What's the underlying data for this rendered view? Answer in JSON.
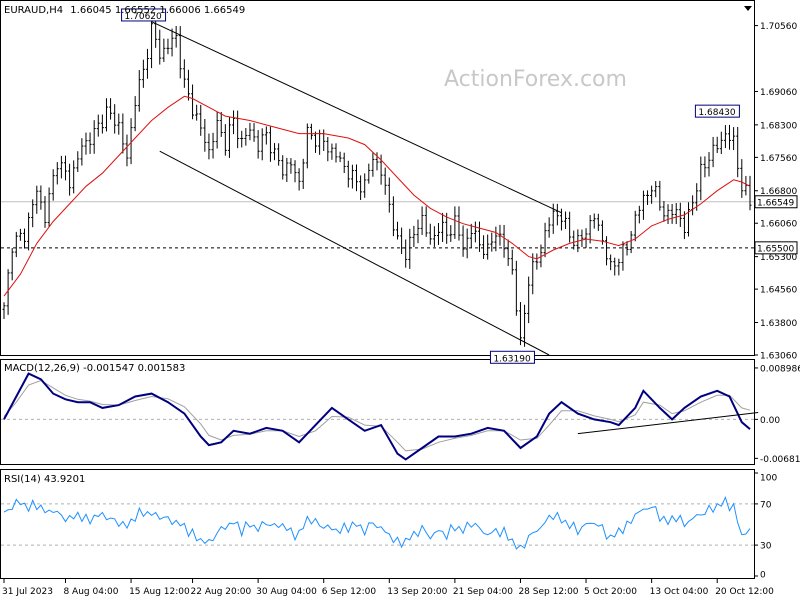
{
  "header": {
    "symbol_tf": "EURAUD,H4",
    "ohlc": "1.66045 1.66552 1.66006 1.66549"
  },
  "watermark": "ActionForex.com",
  "colors": {
    "price": "#000000",
    "sma": "#e01010",
    "macd": "#000080",
    "signal": "#a0a0a0",
    "rsi": "#1e90ff",
    "channel": "#000000"
  },
  "price_panel": {
    "price_axis_ticks": [
      "1.70560",
      "1.69060",
      "1.68300",
      "1.67560",
      "1.66800",
      "1.66060",
      "1.65300",
      "1.64560",
      "1.63800",
      "1.63060"
    ],
    "ylim": [
      1.6306,
      1.7112
    ],
    "current_price_tag": "1.66549",
    "current_price": 1.66549,
    "support_tag": "1.65500",
    "support_level": 1.655,
    "annotations": [
      {
        "text": "1.70620",
        "bar": 36,
        "value": 1.7062,
        "pos": "above"
      },
      {
        "text": "1.68430",
        "bar": 176,
        "value": 1.6843,
        "pos": "above"
      },
      {
        "text": "1.63190",
        "bar": 126,
        "value": 1.6319,
        "pos": "below"
      }
    ],
    "channel_upper": [
      [
        36,
        1.7065
      ],
      [
        136,
        1.663
      ]
    ],
    "channel_lower": [
      [
        38,
        1.677
      ],
      [
        133,
        1.6306
      ]
    ],
    "close_path": [
      [
        0,
        1.641
      ],
      [
        2,
        1.656
      ],
      [
        5,
        1.658
      ],
      [
        8,
        1.668
      ],
      [
        10,
        1.662
      ],
      [
        13,
        1.675
      ],
      [
        16,
        1.67
      ],
      [
        19,
        1.678
      ],
      [
        22,
        1.681
      ],
      [
        25,
        1.686
      ],
      [
        28,
        1.683
      ],
      [
        30,
        1.675
      ],
      [
        32,
        1.689
      ],
      [
        34,
        1.695
      ],
      [
        36,
        1.705
      ],
      [
        38,
        1.699
      ],
      [
        40,
        1.701
      ],
      [
        42,
        1.703
      ],
      [
        44,
        1.692
      ],
      [
        46,
        1.687
      ],
      [
        48,
        1.682
      ],
      [
        50,
        1.677
      ],
      [
        52,
        1.683
      ],
      [
        54,
        1.679
      ],
      [
        56,
        1.684
      ],
      [
        58,
        1.679
      ],
      [
        60,
        1.682
      ],
      [
        62,
        1.678
      ],
      [
        64,
        1.681
      ],
      [
        66,
        1.676
      ],
      [
        68,
        1.673
      ],
      [
        70,
        1.674
      ],
      [
        72,
        1.67
      ],
      [
        74,
        1.681
      ],
      [
        76,
        1.68
      ],
      [
        78,
        1.679
      ],
      [
        80,
        1.677
      ],
      [
        82,
        1.675
      ],
      [
        84,
        1.672
      ],
      [
        86,
        1.67
      ],
      [
        88,
        1.669
      ],
      [
        90,
        1.676
      ],
      [
        92,
        1.672
      ],
      [
        94,
        1.665
      ],
      [
        96,
        1.656
      ],
      [
        98,
        1.654
      ],
      [
        100,
        1.658
      ],
      [
        102,
        1.662
      ],
      [
        104,
        1.656
      ],
      [
        106,
        1.66
      ],
      [
        108,
        1.658
      ],
      [
        110,
        1.661
      ],
      [
        112,
        1.655
      ],
      [
        114,
        1.659
      ],
      [
        116,
        1.656
      ],
      [
        118,
        1.654
      ],
      [
        120,
        1.659
      ],
      [
        122,
        1.655
      ],
      [
        124,
        1.65
      ],
      [
        126,
        1.633
      ],
      [
        128,
        1.648
      ],
      [
        130,
        1.652
      ],
      [
        132,
        1.658
      ],
      [
        134,
        1.663
      ],
      [
        136,
        1.662
      ],
      [
        138,
        1.658
      ],
      [
        140,
        1.656
      ],
      [
        142,
        1.659
      ],
      [
        144,
        1.662
      ],
      [
        146,
        1.657
      ],
      [
        148,
        1.65
      ],
      [
        150,
        1.653
      ],
      [
        152,
        1.655
      ],
      [
        154,
        1.662
      ],
      [
        156,
        1.666
      ],
      [
        158,
        1.669
      ],
      [
        160,
        1.665
      ],
      [
        162,
        1.662
      ],
      [
        164,
        1.664
      ],
      [
        166,
        1.659
      ],
      [
        168,
        1.666
      ],
      [
        170,
        1.672
      ],
      [
        172,
        1.676
      ],
      [
        174,
        1.678
      ],
      [
        176,
        1.681
      ],
      [
        178,
        1.679
      ],
      [
        180,
        1.669
      ],
      [
        182,
        1.6655
      ]
    ],
    "sma_path": [
      [
        0,
        1.644
      ],
      [
        4,
        1.649
      ],
      [
        8,
        1.656
      ],
      [
        12,
        1.661
      ],
      [
        16,
        1.665
      ],
      [
        20,
        1.669
      ],
      [
        24,
        1.672
      ],
      [
        28,
        1.676
      ],
      [
        32,
        1.68
      ],
      [
        36,
        1.684
      ],
      [
        40,
        1.687
      ],
      [
        44,
        1.6895
      ],
      [
        46,
        1.689
      ],
      [
        50,
        1.687
      ],
      [
        54,
        1.685
      ],
      [
        60,
        1.684
      ],
      [
        66,
        1.6825
      ],
      [
        72,
        1.681
      ],
      [
        78,
        1.681
      ],
      [
        84,
        1.68
      ],
      [
        88,
        1.6785
      ],
      [
        92,
        1.675
      ],
      [
        96,
        1.671
      ],
      [
        100,
        1.667
      ],
      [
        104,
        1.664
      ],
      [
        108,
        1.662
      ],
      [
        112,
        1.6605
      ],
      [
        116,
        1.6595
      ],
      [
        120,
        1.6585
      ],
      [
        124,
        1.656
      ],
      [
        128,
        1.653
      ],
      [
        130,
        1.6525
      ],
      [
        134,
        1.6545
      ],
      [
        138,
        1.656
      ],
      [
        142,
        1.657
      ],
      [
        146,
        1.6565
      ],
      [
        150,
        1.6555
      ],
      [
        154,
        1.657
      ],
      [
        158,
        1.66
      ],
      [
        162,
        1.6615
      ],
      [
        166,
        1.6625
      ],
      [
        170,
        1.665
      ],
      [
        174,
        1.668
      ],
      [
        178,
        1.6705
      ],
      [
        180,
        1.67
      ],
      [
        182,
        1.669
      ]
    ],
    "time_labels": [
      "31 Jul 2023",
      "8 Aug 04:00",
      "15 Aug 12:00",
      "22 Aug 20:00",
      "30 Aug 04:00",
      "6 Sep 12:00",
      "13 Sep 20:00",
      "21 Sep 04:00",
      "28 Sep 12:00",
      "5 Oct 20:00",
      "13 Oct 04:00",
      "20 Oct 12:00"
    ],
    "time_label_bars": [
      0,
      15,
      31,
      46,
      62,
      78,
      94,
      110,
      126,
      142,
      158,
      174
    ],
    "bars_total": 183
  },
  "macd_panel": {
    "header": "MACD(12,26,9) -0.001547 0.001583",
    "axis_ticks": [
      "0.008986",
      "0.00",
      "-0.006816"
    ],
    "ylim": [
      -0.0078,
      0.0102
    ],
    "zero": 0.0,
    "main": [
      [
        0,
        0.0
      ],
      [
        3,
        0.004
      ],
      [
        6,
        0.008
      ],
      [
        9,
        0.007
      ],
      [
        12,
        0.0045
      ],
      [
        15,
        0.0035
      ],
      [
        18,
        0.003
      ],
      [
        21,
        0.003
      ],
      [
        24,
        0.002
      ],
      [
        28,
        0.0025
      ],
      [
        32,
        0.004
      ],
      [
        36,
        0.0045
      ],
      [
        40,
        0.003
      ],
      [
        44,
        0.001
      ],
      [
        48,
        -0.003
      ],
      [
        50,
        -0.0045
      ],
      [
        53,
        -0.004
      ],
      [
        56,
        -0.002
      ],
      [
        60,
        -0.0025
      ],
      [
        64,
        -0.0015
      ],
      [
        68,
        -0.002
      ],
      [
        72,
        -0.004
      ],
      [
        76,
        -0.001
      ],
      [
        80,
        0.002
      ],
      [
        84,
        0.0
      ],
      [
        88,
        -0.002
      ],
      [
        92,
        -0.001
      ],
      [
        96,
        -0.006
      ],
      [
        98,
        -0.007
      ],
      [
        102,
        -0.005
      ],
      [
        106,
        -0.003
      ],
      [
        110,
        -0.003
      ],
      [
        114,
        -0.0025
      ],
      [
        118,
        -0.0015
      ],
      [
        122,
        -0.002
      ],
      [
        126,
        -0.005
      ],
      [
        130,
        -0.003
      ],
      [
        133,
        0.001
      ],
      [
        136,
        0.003
      ],
      [
        140,
        0.001
      ],
      [
        144,
        0.0
      ],
      [
        148,
        -0.0005
      ],
      [
        150,
        -0.001
      ],
      [
        154,
        0.002
      ],
      [
        156,
        0.005
      ],
      [
        160,
        0.002
      ],
      [
        163,
        0.0
      ],
      [
        166,
        0.002
      ],
      [
        170,
        0.004
      ],
      [
        174,
        0.005
      ],
      [
        177,
        0.004
      ],
      [
        180,
        -0.0005
      ],
      [
        182,
        -0.0017
      ]
    ],
    "signal": [
      [
        0,
        0.0005
      ],
      [
        3,
        0.003
      ],
      [
        6,
        0.006
      ],
      [
        9,
        0.0068
      ],
      [
        12,
        0.0055
      ],
      [
        15,
        0.0042
      ],
      [
        18,
        0.0035
      ],
      [
        21,
        0.0032
      ],
      [
        24,
        0.0026
      ],
      [
        28,
        0.0025
      ],
      [
        32,
        0.0033
      ],
      [
        36,
        0.004
      ],
      [
        40,
        0.0036
      ],
      [
        44,
        0.0022
      ],
      [
        48,
        -0.0008
      ],
      [
        50,
        -0.0028
      ],
      [
        53,
        -0.0036
      ],
      [
        56,
        -0.0028
      ],
      [
        60,
        -0.0026
      ],
      [
        64,
        -0.002
      ],
      [
        68,
        -0.002
      ],
      [
        72,
        -0.003
      ],
      [
        76,
        -0.002
      ],
      [
        80,
        0.0005
      ],
      [
        84,
        0.0004
      ],
      [
        88,
        -0.001
      ],
      [
        92,
        -0.0012
      ],
      [
        96,
        -0.004
      ],
      [
        98,
        -0.0055
      ],
      [
        102,
        -0.0052
      ],
      [
        106,
        -0.004
      ],
      [
        110,
        -0.0033
      ],
      [
        114,
        -0.0028
      ],
      [
        118,
        -0.002
      ],
      [
        122,
        -0.002
      ],
      [
        126,
        -0.0036
      ],
      [
        130,
        -0.0033
      ],
      [
        133,
        -0.001
      ],
      [
        136,
        0.0015
      ],
      [
        140,
        0.0015
      ],
      [
        144,
        0.0006
      ],
      [
        148,
        0.0
      ],
      [
        150,
        -0.0004
      ],
      [
        154,
        0.0008
      ],
      [
        156,
        0.003
      ],
      [
        160,
        0.0025
      ],
      [
        163,
        0.001
      ],
      [
        166,
        0.0015
      ],
      [
        170,
        0.003
      ],
      [
        174,
        0.0042
      ],
      [
        177,
        0.0042
      ],
      [
        180,
        0.002
      ],
      [
        182,
        0.0016
      ]
    ],
    "trendline": [
      [
        140,
        -0.0025
      ],
      [
        184,
        0.0012
      ]
    ]
  },
  "rsi_panel": {
    "header": "RSI(14) 43.9201",
    "axis_ticks": [
      "100",
      "70",
      "30",
      "0"
    ],
    "ylim": [
      0,
      100
    ],
    "levels": [
      70,
      30
    ],
    "values": [
      [
        0,
        60
      ],
      [
        2,
        68
      ],
      [
        4,
        72
      ],
      [
        6,
        66
      ],
      [
        8,
        70
      ],
      [
        10,
        62
      ],
      [
        12,
        64
      ],
      [
        14,
        58
      ],
      [
        16,
        55
      ],
      [
        18,
        60
      ],
      [
        20,
        54
      ],
      [
        22,
        57
      ],
      [
        24,
        60
      ],
      [
        26,
        55
      ],
      [
        28,
        52
      ],
      [
        30,
        48
      ],
      [
        32,
        58
      ],
      [
        34,
        62
      ],
      [
        36,
        60
      ],
      [
        38,
        58
      ],
      [
        40,
        55
      ],
      [
        42,
        52
      ],
      [
        44,
        48
      ],
      [
        46,
        40
      ],
      [
        48,
        35
      ],
      [
        50,
        32
      ],
      [
        52,
        42
      ],
      [
        54,
        48
      ],
      [
        56,
        52
      ],
      [
        58,
        45
      ],
      [
        60,
        50
      ],
      [
        62,
        46
      ],
      [
        64,
        52
      ],
      [
        66,
        48
      ],
      [
        68,
        50
      ],
      [
        70,
        42
      ],
      [
        72,
        40
      ],
      [
        74,
        56
      ],
      [
        76,
        52
      ],
      [
        78,
        48
      ],
      [
        80,
        46
      ],
      [
        82,
        44
      ],
      [
        84,
        48
      ],
      [
        86,
        50
      ],
      [
        88,
        44
      ],
      [
        90,
        52
      ],
      [
        92,
        46
      ],
      [
        94,
        40
      ],
      [
        96,
        32
      ],
      [
        98,
        34
      ],
      [
        100,
        40
      ],
      [
        102,
        46
      ],
      [
        104,
        38
      ],
      [
        106,
        44
      ],
      [
        108,
        40
      ],
      [
        110,
        48
      ],
      [
        112,
        44
      ],
      [
        114,
        52
      ],
      [
        116,
        46
      ],
      [
        118,
        40
      ],
      [
        120,
        44
      ],
      [
        122,
        42
      ],
      [
        124,
        34
      ],
      [
        126,
        25
      ],
      [
        128,
        38
      ],
      [
        130,
        44
      ],
      [
        132,
        52
      ],
      [
        134,
        60
      ],
      [
        136,
        54
      ],
      [
        138,
        50
      ],
      [
        140,
        44
      ],
      [
        142,
        50
      ],
      [
        144,
        52
      ],
      [
        146,
        46
      ],
      [
        148,
        36
      ],
      [
        150,
        44
      ],
      [
        152,
        48
      ],
      [
        154,
        60
      ],
      [
        156,
        64
      ],
      [
        158,
        68
      ],
      [
        160,
        58
      ],
      [
        162,
        52
      ],
      [
        164,
        58
      ],
      [
        166,
        50
      ],
      [
        168,
        56
      ],
      [
        170,
        60
      ],
      [
        172,
        64
      ],
      [
        174,
        68
      ],
      [
        176,
        72
      ],
      [
        178,
        66
      ],
      [
        180,
        40
      ],
      [
        182,
        44
      ]
    ]
  }
}
